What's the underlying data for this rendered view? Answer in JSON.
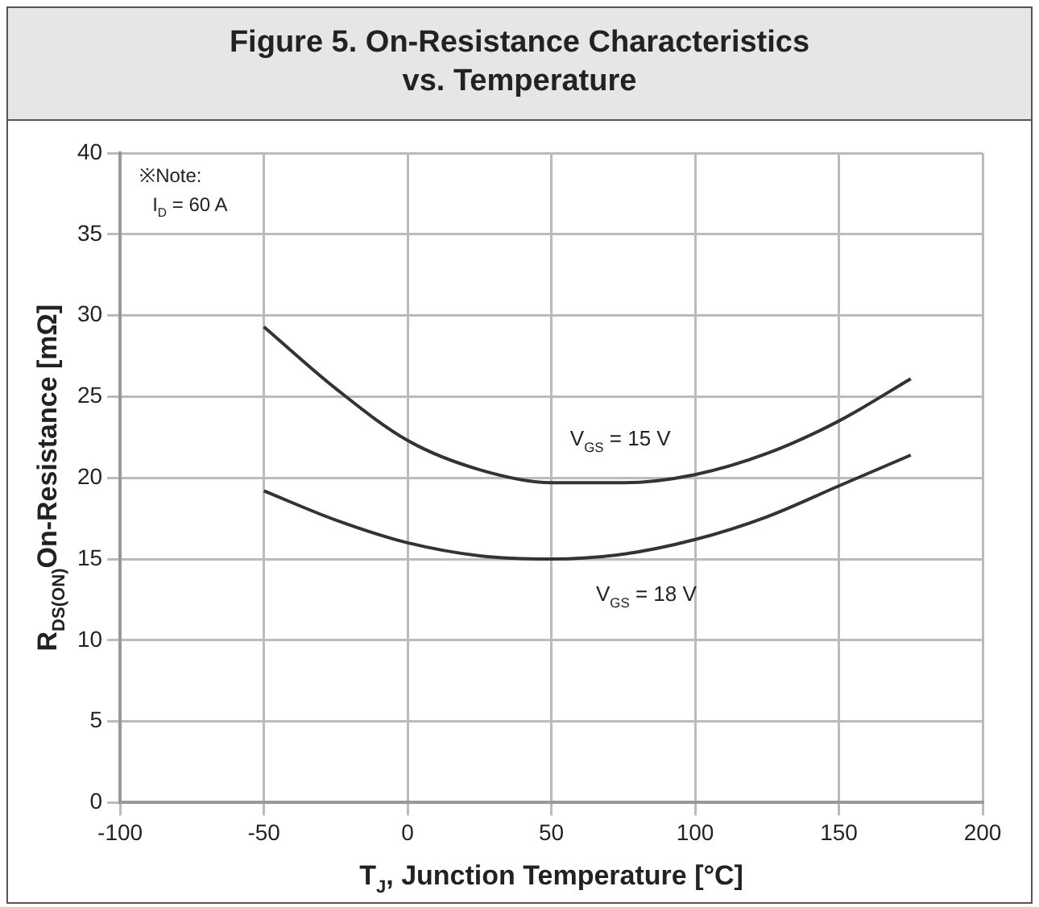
{
  "chart_data": {
    "type": "line",
    "title": "Figure 5. On-Resistance Characteristics\nvs. Temperature",
    "xlabel": "T$_{J}$, Junction Temperature [°C]",
    "ylabel": "R$_{DS(ON)}$On-Resistance [mΩ]",
    "x": [
      -50,
      -25,
      0,
      25,
      50,
      75,
      100,
      125,
      150,
      175
    ],
    "series": [
      {
        "color": "#333333",
        "values": [
          29.3,
          25.5,
          22.3,
          20.5,
          19.7,
          19.7,
          20.2,
          21.5,
          23.5,
          26.1
        ]
      },
      {
        "color": "#333333",
        "values": [
          19.2,
          17.4,
          16.0,
          15.2,
          15.0,
          15.3,
          16.2,
          17.6,
          19.5,
          21.4
        ]
      }
    ],
    "xlim": [
      -100,
      200
    ],
    "xticks": [
      -100,
      -50,
      0,
      50,
      100,
      150,
      200
    ],
    "ylim": [
      0,
      40
    ],
    "yticks": [
      0,
      5,
      10,
      15,
      20,
      25,
      30,
      35,
      40
    ],
    "grid": true,
    "legend": false,
    "marker": "none",
    "line_style": "solid",
    "annotations": [
      "※Note:\nI$_{D}$ = 60 A",
      "V$_{GS}$ = 15 V",
      "V$_{GS}$ = 18 V"
    ]
  }
}
